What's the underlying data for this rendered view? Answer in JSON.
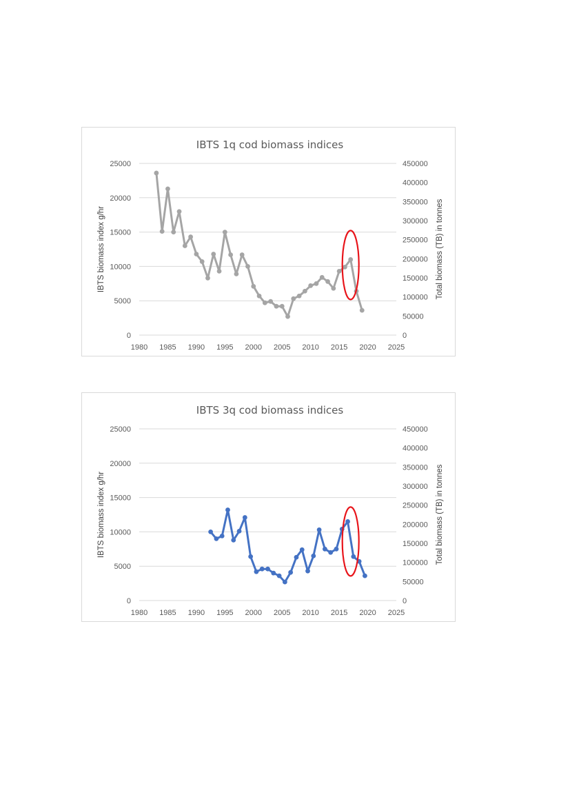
{
  "chart_data": [
    {
      "type": "line",
      "title": "IBTS 1q cod biomass indices",
      "ylabel": "IBTS biomass index g/hr",
      "y2label": "Total biomass (TB) in tonnes",
      "xlim": [
        1980,
        2025
      ],
      "ylim": [
        0,
        25000
      ],
      "y2lim": [
        0,
        450000
      ],
      "xticks": [
        "1980",
        "1985",
        "1990",
        "1995",
        "2000",
        "2005",
        "2010",
        "2015",
        "2020",
        "2025"
      ],
      "yticks": [
        "0",
        "5000",
        "10000",
        "15000",
        "20000",
        "25000"
      ],
      "y2ticks": [
        "0",
        "50000",
        "100000",
        "150000",
        "200000",
        "250000",
        "300000",
        "350000",
        "400000",
        "450000"
      ],
      "grid": true,
      "highlight_ellipse": {
        "center_x": 2017,
        "center_y": 10200,
        "color": "#e8141a"
      },
      "series": [
        {
          "color": "#a5a5a5",
          "x": [
            1983,
            1984,
            1985,
            1986,
            1987,
            1988,
            1989,
            1990,
            1991,
            1992,
            1993,
            1994,
            1995,
            1996,
            1997,
            1998,
            1999,
            2000,
            2001,
            2002,
            2003,
            2004,
            2005,
            2006,
            2007,
            2008,
            2009,
            2010,
            2011,
            2012,
            2013,
            2014,
            2015,
            2016,
            2017,
            2018,
            2019
          ],
          "y": [
            23600,
            15100,
            21300,
            15000,
            18000,
            13000,
            14300,
            11800,
            10700,
            8300,
            11800,
            9300,
            15000,
            11700,
            8900,
            11700,
            10000,
            7100,
            5700,
            4700,
            4900,
            4200,
            4200,
            2700,
            5300,
            5700,
            6400,
            7200,
            7500,
            8400,
            7800,
            6800,
            9300,
            9900,
            11000,
            6400,
            3600
          ]
        }
      ]
    },
    {
      "type": "line",
      "title": "IBTS 3q cod biomass indices",
      "ylabel": "IBTS biomass index g/hr",
      "y2label": "Total biomass (TB) in tonnes",
      "xlim": [
        1980,
        2025
      ],
      "ylim": [
        0,
        25000
      ],
      "y2lim": [
        0,
        450000
      ],
      "xticks": [
        "1980",
        "1985",
        "1990",
        "1995",
        "2000",
        "2005",
        "2010",
        "2015",
        "2020",
        "2025"
      ],
      "yticks": [
        "0",
        "5000",
        "10000",
        "15000",
        "20000",
        "25000"
      ],
      "y2ticks": [
        "0",
        "50000",
        "100000",
        "150000",
        "200000",
        "250000",
        "300000",
        "350000",
        "400000",
        "450000"
      ],
      "grid": true,
      "highlight_ellipse": {
        "center_x": 2017,
        "center_y": 8600,
        "color": "#e8141a"
      },
      "series": [
        {
          "color": "#4472c4",
          "x": [
            1992.5,
            1993.5,
            1994.5,
            1995.5,
            1996.5,
            1997.5,
            1998.5,
            1999.5,
            2000.5,
            2001.5,
            2002.5,
            2003.5,
            2004.5,
            2005.5,
            2006.5,
            2007.5,
            2008.5,
            2009.5,
            2010.5,
            2011.5,
            2012.5,
            2013.5,
            2014.5,
            2015.5,
            2016.5,
            2017.5,
            2018.5,
            2019.5
          ],
          "y": [
            10000,
            9000,
            9400,
            13200,
            8800,
            10100,
            12100,
            6400,
            4200,
            4600,
            4600,
            4000,
            3600,
            2700,
            4100,
            6300,
            7400,
            4300,
            6500,
            10300,
            7500,
            7000,
            7500,
            10400,
            11500,
            6400,
            5700,
            3600
          ]
        }
      ]
    }
  ]
}
